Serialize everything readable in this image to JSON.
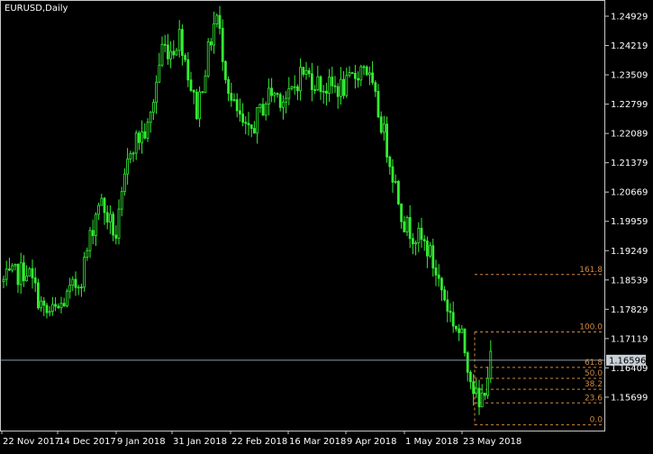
{
  "title": "EURUSD,Daily",
  "colors": {
    "background": "#000000",
    "candle": "#33ee33",
    "frame": "#c8c8c8",
    "axis_text": "#ffffff",
    "fib": "#d08a3c",
    "price_line": "#8a9aa8",
    "price_label_bg": "#c8d0d8",
    "price_label_text": "#000000"
  },
  "price_axis": {
    "labels": [
      "1.24929",
      "1.24219",
      "1.23509",
      "1.22799",
      "1.22089",
      "1.21379",
      "1.20669",
      "1.19959",
      "1.19249",
      "1.18539",
      "1.17829",
      "1.17119",
      "1.16409",
      "1.15699"
    ],
    "current_price": "1.16596"
  },
  "time_axis": {
    "labels": [
      "22 Nov 2017",
      "14 Dec 2017",
      "9 Jan 2018",
      "31 Jan 2018",
      "22 Feb 2018",
      "16 Mar 2018",
      "9 Apr 2018",
      "1 May 2018",
      "23 May 2018"
    ]
  },
  "fibonacci": {
    "levels": [
      {
        "label": "161.8",
        "price": 1.1867
      },
      {
        "label": "100.0",
        "price": 1.1728
      },
      {
        "label": "61.8",
        "price": 1.1642
      },
      {
        "label": "50.0",
        "price": 1.16155
      },
      {
        "label": "38.2",
        "price": 1.1589
      },
      {
        "label": "23.6",
        "price": 1.1556
      },
      {
        "label": "0.0",
        "price": 1.1503
      }
    ]
  },
  "chart_data": {
    "type": "candlestick",
    "symbol": "EURUSD",
    "timeframe": "Daily",
    "ylim": [
      1.1489,
      1.253
    ],
    "x_range": [
      "22 Nov 2017",
      "2 Jun 2018"
    ],
    "series": [
      {
        "x": "22 Nov 2017",
        "close": 1.185
      },
      {
        "x": "1 Dec 2017",
        "close": 1.188
      },
      {
        "x": "7 Dec 2017",
        "close": 1.177
      },
      {
        "x": "14 Dec 2017",
        "close": 1.178
      },
      {
        "x": "22 Dec 2017",
        "close": 1.186
      },
      {
        "x": "2 Jan 2018",
        "close": 1.205
      },
      {
        "x": "9 Jan 2018",
        "close": 1.196
      },
      {
        "x": "12 Jan 2018",
        "close": 1.218
      },
      {
        "x": "19 Jan 2018",
        "close": 1.222
      },
      {
        "x": "25 Jan 2018",
        "close": 1.242
      },
      {
        "x": "31 Jan 2018",
        "close": 1.241
      },
      {
        "x": "2 Feb 2018",
        "close": 1.245
      },
      {
        "x": "9 Feb 2018",
        "close": 1.226
      },
      {
        "x": "16 Feb 2018",
        "close": 1.25
      },
      {
        "x": "22 Feb 2018",
        "close": 1.229
      },
      {
        "x": "1 Mar 2018",
        "close": 1.22
      },
      {
        "x": "9 Mar 2018",
        "close": 1.231
      },
      {
        "x": "16 Mar 2018",
        "close": 1.229
      },
      {
        "x": "22 Mar 2018",
        "close": 1.236
      },
      {
        "x": "29 Mar 2018",
        "close": 1.232
      },
      {
        "x": "9 Apr 2018",
        "close": 1.232
      },
      {
        "x": "17 Apr 2018",
        "close": 1.238
      },
      {
        "x": "24 Apr 2018",
        "close": 1.222
      },
      {
        "x": "1 May 2018",
        "close": 1.199
      },
      {
        "x": "11 May 2018",
        "close": 1.193
      },
      {
        "x": "18 May 2018",
        "close": 1.177
      },
      {
        "x": "23 May 2018",
        "close": 1.171
      },
      {
        "x": "29 May 2018",
        "close": 1.154
      },
      {
        "x": "2 Jun 2018",
        "close": 1.166
      }
    ]
  }
}
